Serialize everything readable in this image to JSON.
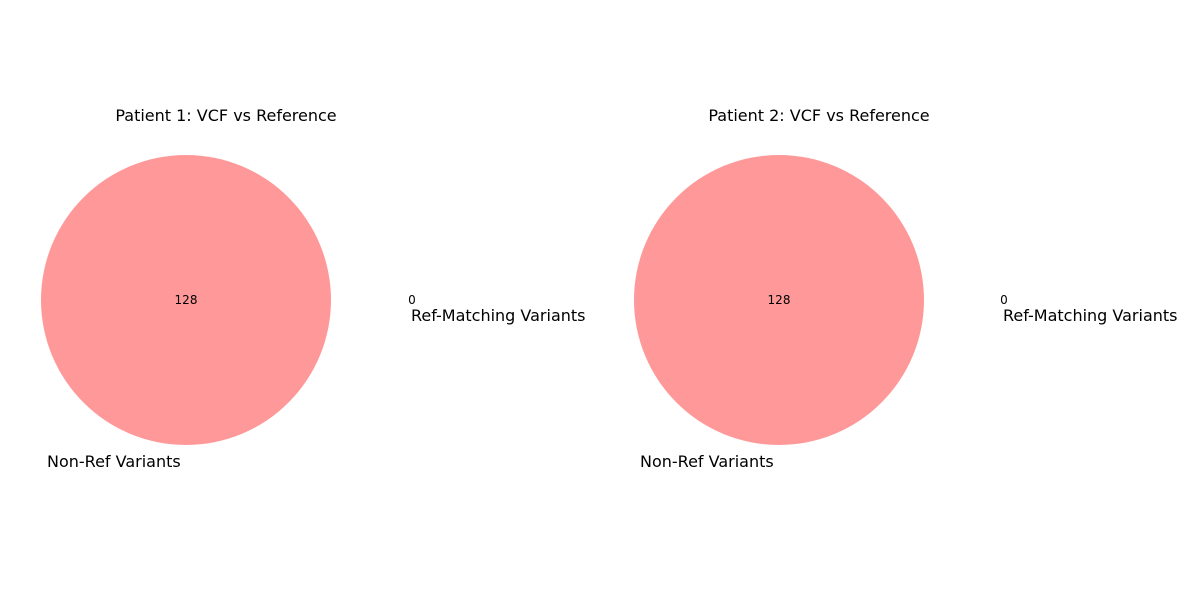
{
  "chart_data": [
    {
      "type": "venn",
      "title": "Patient 1: VCF vs Reference",
      "sets": [
        {
          "label": "Non-Ref Variants",
          "only_count": 128
        },
        {
          "label": "Ref-Matching Variants",
          "only_count": 0
        }
      ],
      "intersection_count": null,
      "colors": {
        "left": "#ff9999",
        "right": "#99ccff"
      }
    },
    {
      "type": "venn",
      "title": "Patient 2: VCF vs Reference",
      "sets": [
        {
          "label": "Non-Ref Variants",
          "only_count": 128
        },
        {
          "label": "Ref-Matching Variants",
          "only_count": 0
        }
      ],
      "intersection_count": null,
      "colors": {
        "left": "#ff9999",
        "right": "#99ccff"
      }
    }
  ]
}
